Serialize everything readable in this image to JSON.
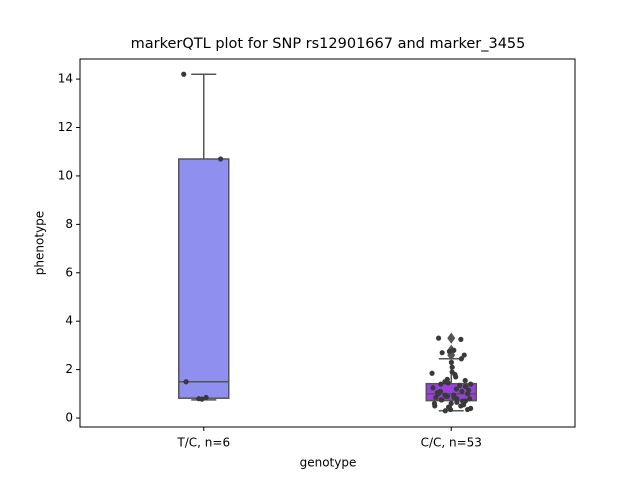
{
  "chart_data": {
    "type": "box",
    "title": "markerQTL plot for SNP rs12901667 and marker_3455",
    "xlabel": "genotype",
    "ylabel": "phenotype",
    "categories": [
      "T/C, n=6",
      "C/C, n=53"
    ],
    "ylim": [
      -0.37,
      14.83
    ],
    "yticks": [
      0,
      2,
      4,
      6,
      8,
      10,
      12,
      14
    ],
    "line_color": "#555555",
    "point_color": "#3a3a3a",
    "boxes": [
      {
        "color": "#8f8ff0",
        "whislo": 0.75,
        "q1": 0.82,
        "med": 1.5,
        "q3": 10.7,
        "whishi": 14.2,
        "fliers": [],
        "points": [
          14.2,
          10.7,
          1.5,
          0.85,
          0.8,
          0.78
        ]
      },
      {
        "color": "#9b3fe0",
        "whislo": 0.3,
        "q1": 0.72,
        "med": 1.0,
        "q3": 1.42,
        "whishi": 2.45,
        "fliers": [
          2.6,
          2.75,
          2.8,
          3.3
        ],
        "points": [
          3.3,
          3.25,
          2.8,
          2.75,
          2.7,
          2.6,
          2.45,
          2.3,
          2.1,
          1.9,
          1.85,
          1.8,
          1.7,
          1.6,
          1.55,
          1.5,
          1.45,
          1.4,
          1.4,
          1.35,
          1.3,
          1.3,
          1.25,
          1.2,
          1.15,
          1.1,
          1.1,
          1.05,
          1.0,
          1.0,
          0.95,
          0.95,
          0.9,
          0.9,
          0.85,
          0.85,
          0.8,
          0.8,
          0.75,
          0.75,
          0.7,
          0.7,
          0.65,
          0.6,
          0.6,
          0.55,
          0.5,
          0.5,
          0.45,
          0.4,
          0.35,
          0.35,
          0.3
        ]
      }
    ]
  }
}
